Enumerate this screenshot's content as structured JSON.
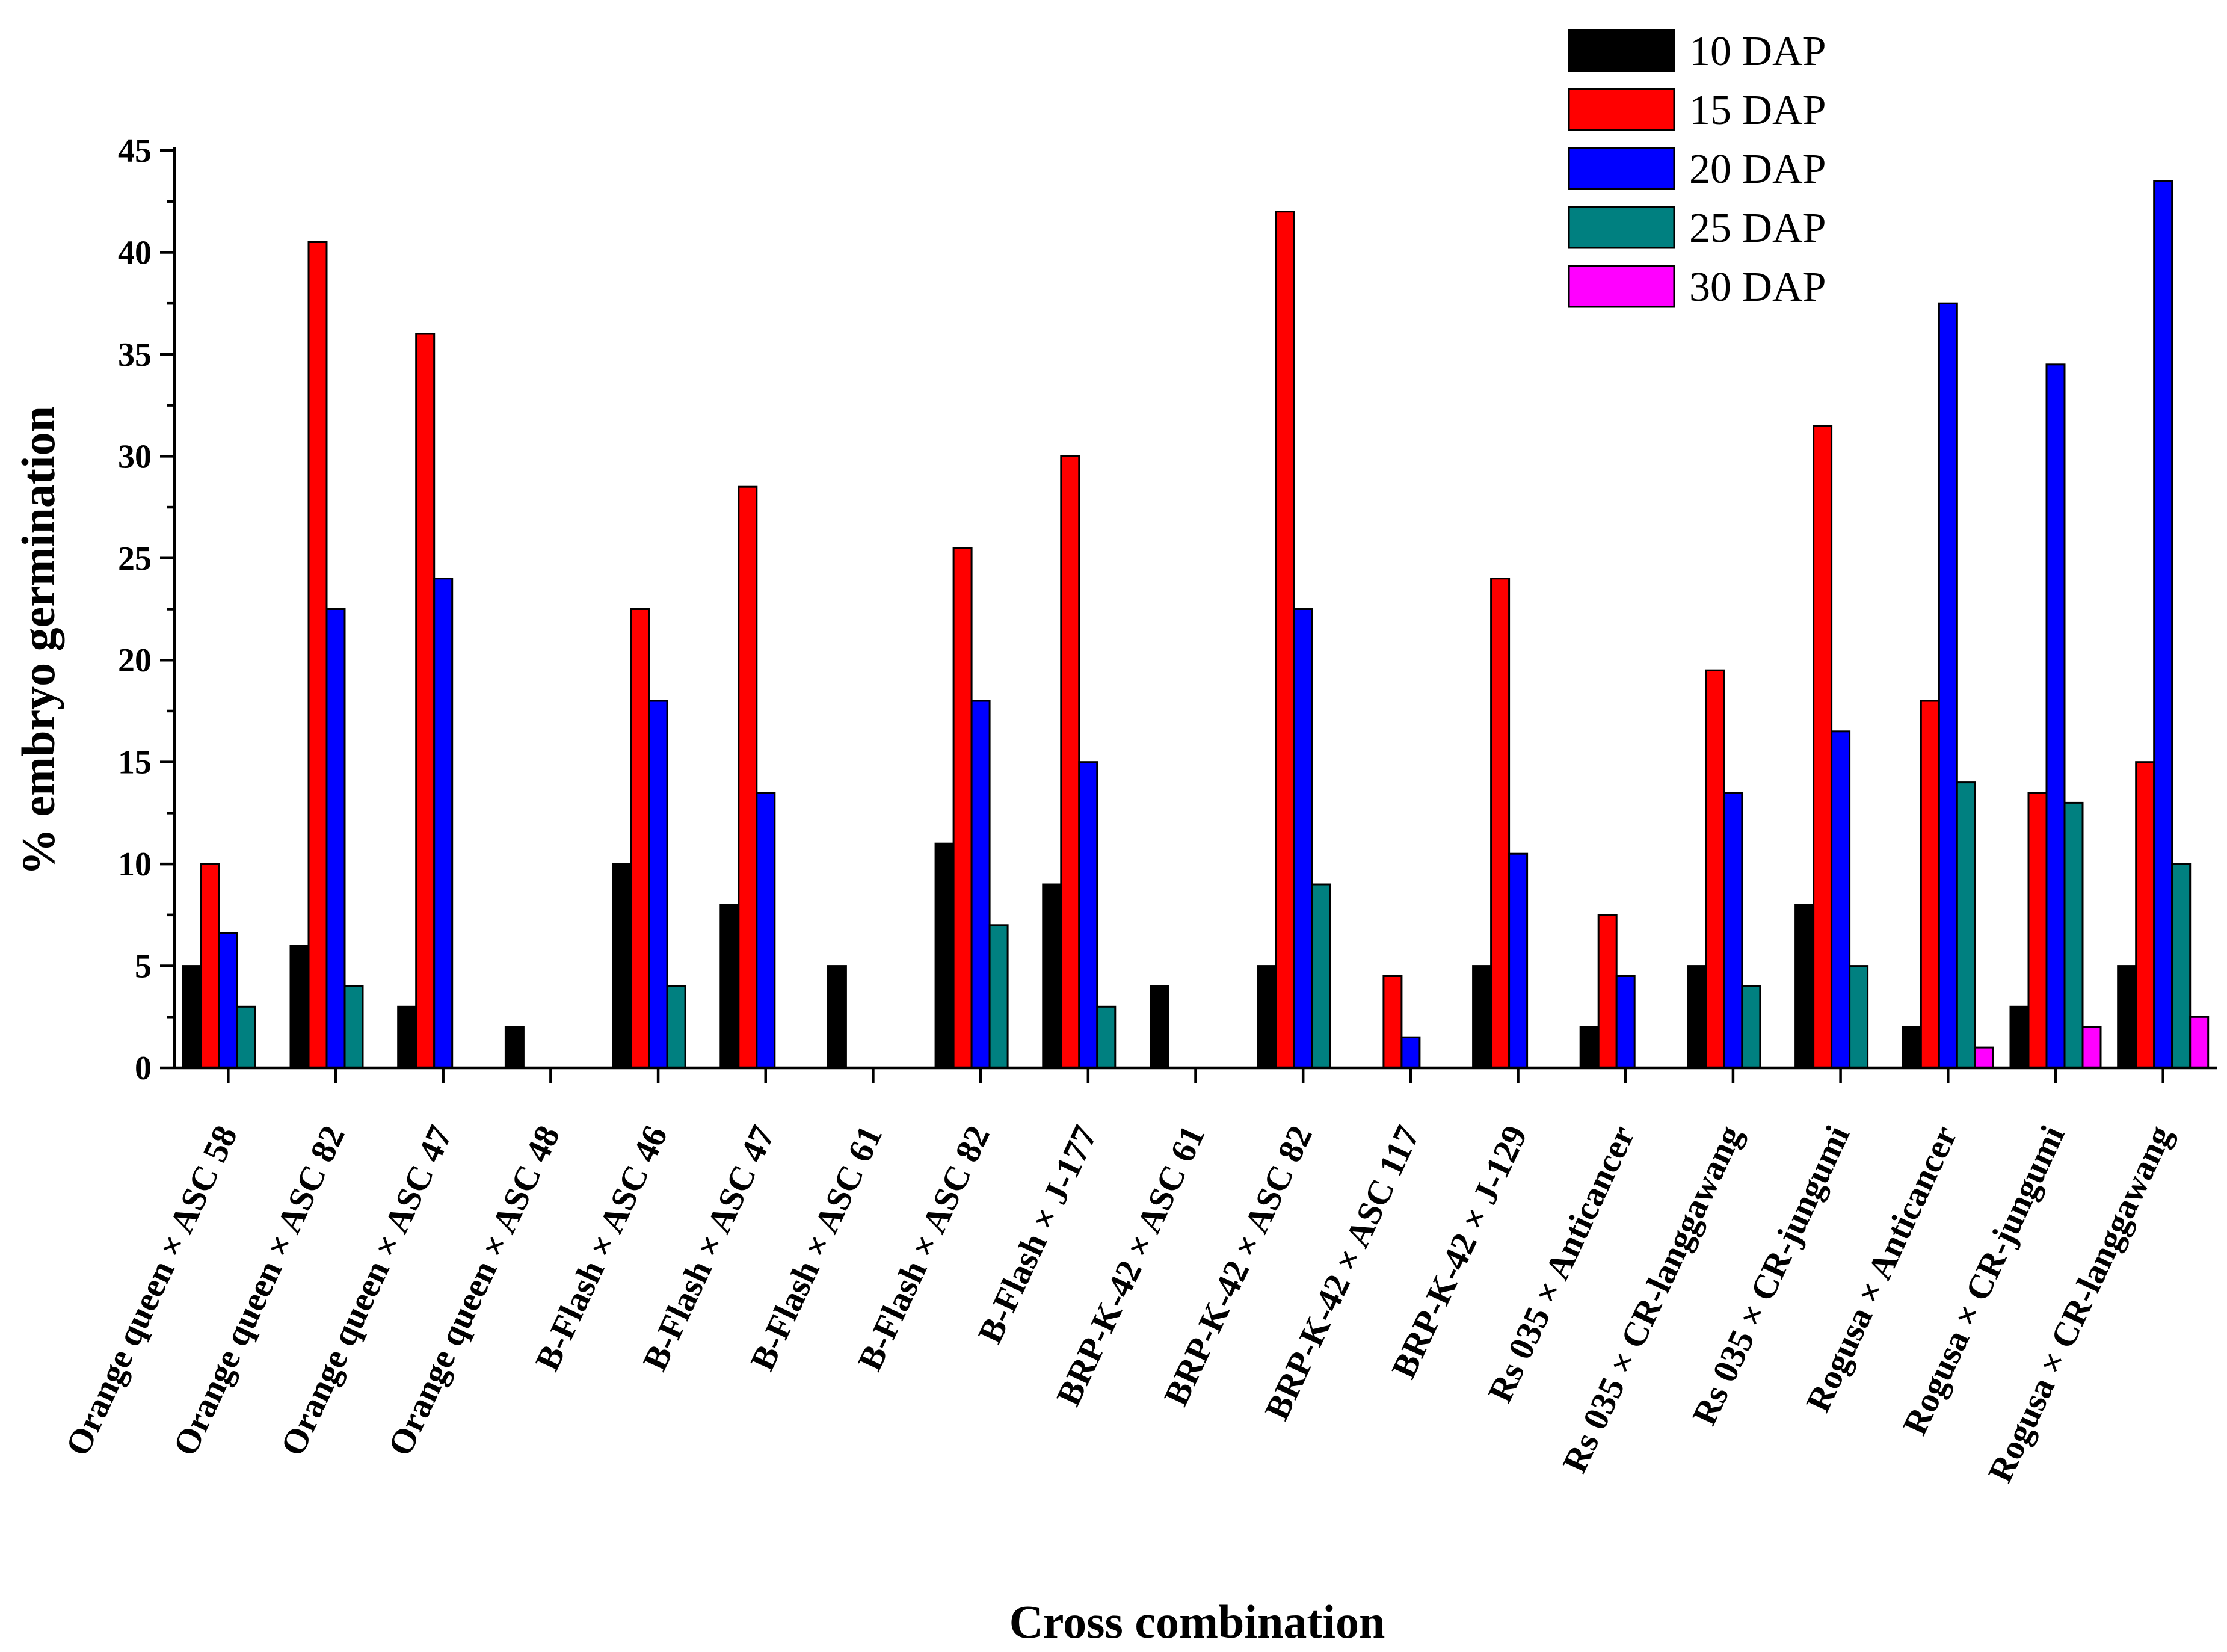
{
  "chart_data": {
    "type": "bar",
    "xlabel": "Cross combination",
    "ylabel": "% embryo germination",
    "ylim": [
      0,
      45
    ],
    "yticks": [
      0,
      5,
      10,
      15,
      20,
      25,
      30,
      35,
      40,
      45
    ],
    "grid": false,
    "legend_position": "top-right",
    "categories": [
      "Orange queen × ASC 58",
      "Orange queen × ASC 82",
      "Orange queen × ASC 47",
      "Orange queen × ASC 48",
      "B-Flash × ASC 46",
      "B-Flash × ASC 47",
      "B-Flash × ASC 61",
      "B-Flash × ASC 82",
      "B-Flash × J-177",
      "BRP-K-42 × ASC 61",
      "BRP-K-42 × ASC 82",
      "BRP-K-42 × ASC 117",
      "BRP-K-42 × J-129",
      "Rs 035 × Anticancer",
      "Rs 035 × CR-langgawang",
      "Rs 035 × CR-jungumi",
      "Rogusa × Anticancer",
      "Rogusa × CR-jungumi",
      "Rogusa × CR-langgawang"
    ],
    "series": [
      {
        "name": "10 DAP",
        "color": "#000000",
        "values": [
          5,
          6,
          3,
          2,
          10,
          8,
          5,
          11,
          9,
          4,
          5,
          0,
          5,
          2,
          5,
          8,
          2,
          3,
          5
        ]
      },
      {
        "name": "15 DAP",
        "color": "#ff0000",
        "values": [
          10,
          40.5,
          36,
          0,
          22.5,
          28.5,
          0,
          25.5,
          30,
          0,
          42,
          4.5,
          24,
          7.5,
          19.5,
          31.5,
          18,
          13.5,
          15
        ]
      },
      {
        "name": "20 DAP",
        "color": "#0000ff",
        "values": [
          6.6,
          22.5,
          24,
          0,
          18,
          13.5,
          0,
          18,
          15,
          0,
          22.5,
          1.5,
          10.5,
          4.5,
          13.5,
          16.5,
          37.5,
          34.5,
          43.5
        ]
      },
      {
        "name": "25 DAP",
        "color": "#008080",
        "values": [
          3,
          4,
          0,
          0,
          4,
          0,
          0,
          7,
          3,
          0,
          9,
          0,
          0,
          0,
          4,
          5,
          14,
          13,
          10
        ]
      },
      {
        "name": "30 DAP",
        "color": "#ff00ff",
        "values": [
          0,
          0,
          0,
          0,
          0,
          0,
          0,
          0,
          0,
          0,
          0,
          0,
          0,
          0,
          0,
          0,
          1,
          2,
          2.5
        ]
      }
    ]
  }
}
